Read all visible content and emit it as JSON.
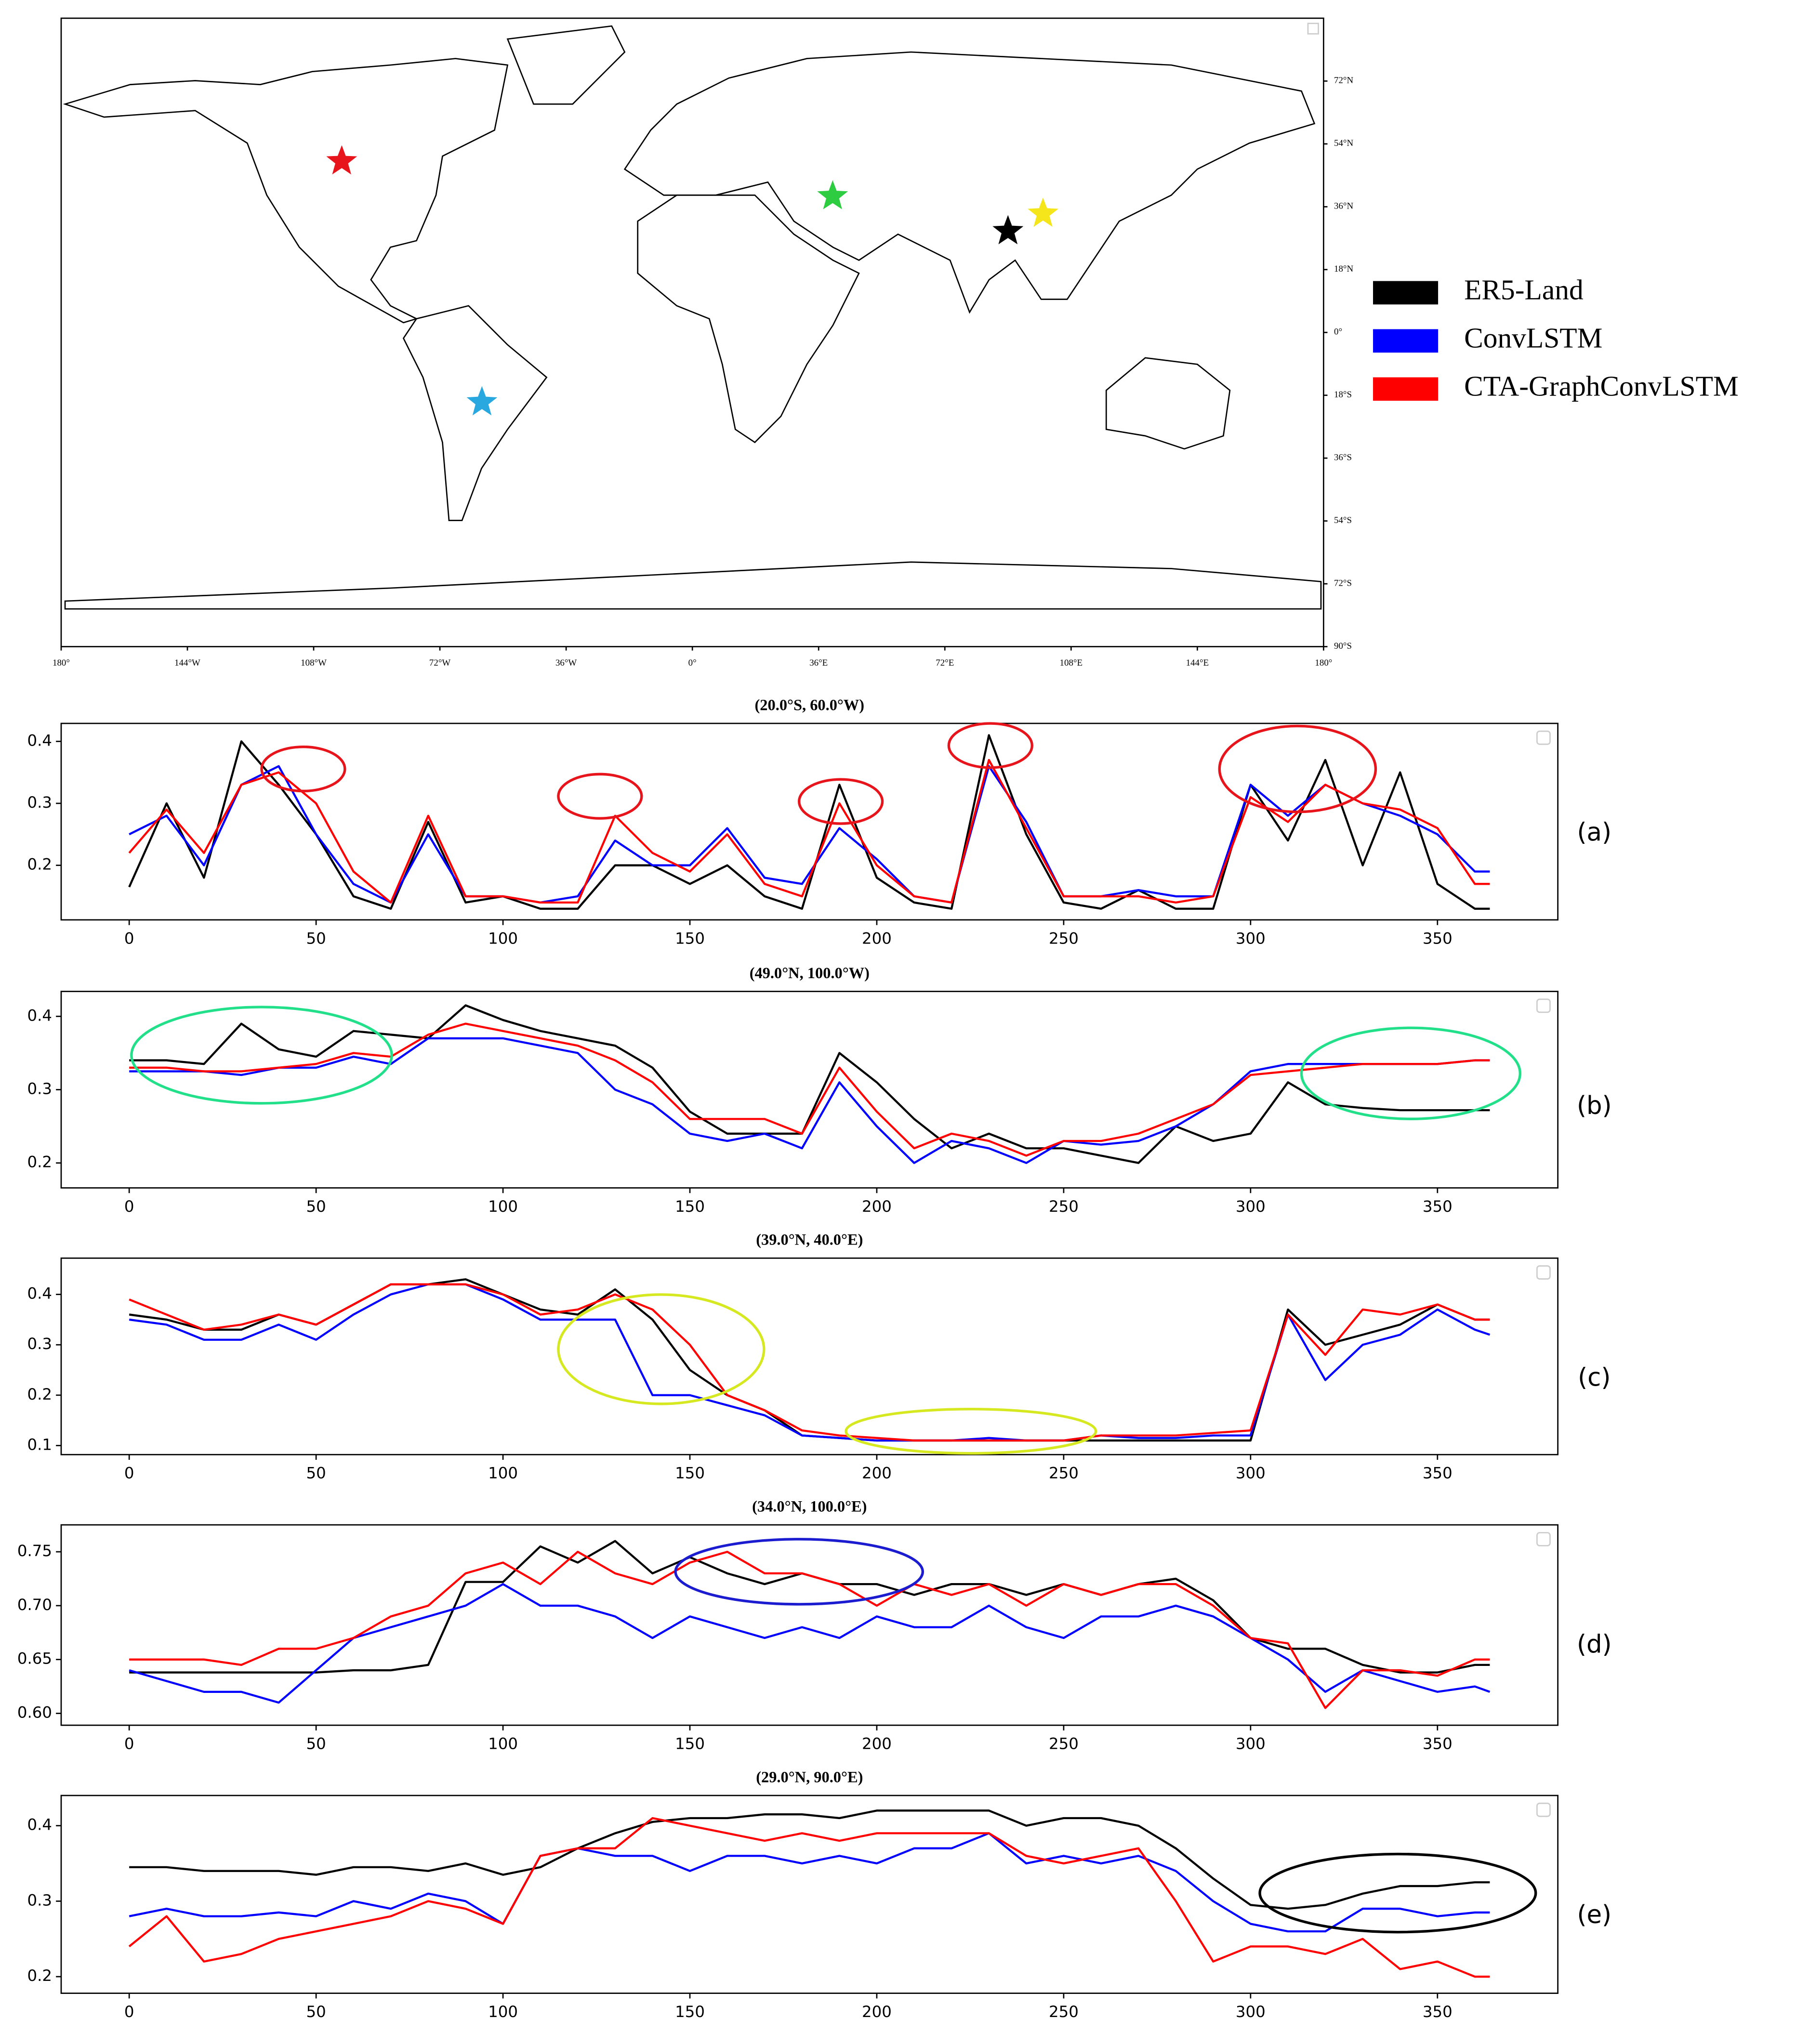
{
  "chart_data": [
    {
      "type": "map",
      "xlim": [
        -180,
        180
      ],
      "ylim": [
        -90,
        90
      ],
      "xticks": [
        {
          "value": -180,
          "label": "180°"
        },
        {
          "value": -144,
          "label": "144°W"
        },
        {
          "value": -108,
          "label": "108°W"
        },
        {
          "value": -72,
          "label": "72°W"
        },
        {
          "value": -36,
          "label": "36°W"
        },
        {
          "value": 0,
          "label": "0°"
        },
        {
          "value": 36,
          "label": "36°E"
        },
        {
          "value": 72,
          "label": "72°E"
        },
        {
          "value": 108,
          "label": "108°E"
        },
        {
          "value": 144,
          "label": "144°E"
        },
        {
          "value": 180,
          "label": "180°"
        }
      ],
      "yticks": [
        {
          "value": 72,
          "label": "72°N"
        },
        {
          "value": 54,
          "label": "54°N"
        },
        {
          "value": 36,
          "label": "36°N"
        },
        {
          "value": 18,
          "label": "18°N"
        },
        {
          "value": 0,
          "label": "0°"
        },
        {
          "value": -18,
          "label": "18°S"
        },
        {
          "value": -36,
          "label": "36°S"
        },
        {
          "value": -54,
          "label": "54°S"
        },
        {
          "value": -72,
          "label": "72°S"
        },
        {
          "value": -90,
          "label": "90°S"
        }
      ],
      "points": [
        {
          "lon": -100,
          "lat": 49,
          "color": "#e8141b"
        },
        {
          "lon": -60,
          "lat": -20,
          "color": "#29a8e0"
        },
        {
          "lon": 40,
          "lat": 39,
          "color": "#2ecc40"
        },
        {
          "lon": 100,
          "lat": 34,
          "color": "#f5e61b"
        },
        {
          "lon": 90,
          "lat": 29,
          "color": "#000000"
        }
      ]
    },
    {
      "type": "line",
      "title": "(20.0°S, 60.0°W)",
      "panel_label": "(a)",
      "xlim": [
        -18.2,
        382.2
      ],
      "ylim": [
        0.112,
        0.429
      ],
      "xticks": [
        0,
        50,
        100,
        150,
        200,
        250,
        300,
        350
      ],
      "yticks": [
        0.2,
        0.3,
        0.4
      ],
      "x": [
        0,
        10,
        20,
        30,
        40,
        50,
        60,
        70,
        80,
        90,
        100,
        110,
        120,
        130,
        140,
        150,
        160,
        170,
        180,
        190,
        200,
        210,
        220,
        230,
        240,
        250,
        260,
        270,
        280,
        290,
        300,
        310,
        320,
        330,
        340,
        350,
        360,
        364
      ],
      "series": [
        {
          "name": "ER5-Land",
          "color": "#000000",
          "values": [
            0.165,
            0.3,
            0.18,
            0.4,
            0.33,
            0.25,
            0.15,
            0.13,
            0.27,
            0.14,
            0.15,
            0.13,
            0.13,
            0.2,
            0.2,
            0.17,
            0.2,
            0.15,
            0.13,
            0.33,
            0.18,
            0.14,
            0.13,
            0.41,
            0.25,
            0.14,
            0.13,
            0.16,
            0.13,
            0.13,
            0.33,
            0.24,
            0.37,
            0.2,
            0.35,
            0.17,
            0.13,
            0.13
          ]
        },
        {
          "name": "ConvLSTM",
          "color": "#0000ff",
          "values": [
            0.25,
            0.28,
            0.2,
            0.33,
            0.36,
            0.25,
            0.17,
            0.14,
            0.25,
            0.15,
            0.15,
            0.14,
            0.15,
            0.24,
            0.2,
            0.2,
            0.26,
            0.18,
            0.17,
            0.26,
            0.21,
            0.15,
            0.14,
            0.36,
            0.27,
            0.15,
            0.15,
            0.16,
            0.15,
            0.15,
            0.33,
            0.28,
            0.33,
            0.3,
            0.28,
            0.25,
            0.19,
            0.19
          ]
        },
        {
          "name": "CTA-GraphConvLSTM",
          "color": "#ff0000",
          "values": [
            0.22,
            0.29,
            0.22,
            0.33,
            0.35,
            0.3,
            0.19,
            0.14,
            0.28,
            0.15,
            0.15,
            0.14,
            0.14,
            0.28,
            0.22,
            0.19,
            0.25,
            0.17,
            0.15,
            0.3,
            0.2,
            0.15,
            0.14,
            0.37,
            0.26,
            0.15,
            0.15,
            0.15,
            0.14,
            0.15,
            0.31,
            0.27,
            0.33,
            0.3,
            0.29,
            0.26,
            0.17,
            0.17
          ]
        }
      ]
    },
    {
      "type": "line",
      "title": "(49.0°N, 100.0°W)",
      "panel_label": "(b)",
      "xlim": [
        -18.2,
        382.2
      ],
      "ylim": [
        0.166,
        0.434
      ],
      "xticks": [
        0,
        50,
        100,
        150,
        200,
        250,
        300,
        350
      ],
      "yticks": [
        0.2,
        0.3,
        0.4
      ],
      "x": [
        0,
        10,
        20,
        30,
        40,
        50,
        60,
        70,
        80,
        90,
        100,
        110,
        120,
        130,
        140,
        150,
        160,
        170,
        180,
        190,
        200,
        210,
        220,
        230,
        240,
        250,
        260,
        270,
        280,
        290,
        300,
        310,
        320,
        330,
        340,
        350,
        360,
        364
      ],
      "series": [
        {
          "name": "ER5-Land",
          "color": "#000000",
          "values": [
            0.34,
            0.34,
            0.335,
            0.39,
            0.355,
            0.345,
            0.38,
            0.375,
            0.37,
            0.415,
            0.395,
            0.38,
            0.37,
            0.36,
            0.33,
            0.27,
            0.24,
            0.24,
            0.24,
            0.35,
            0.31,
            0.26,
            0.22,
            0.24,
            0.22,
            0.22,
            0.21,
            0.2,
            0.25,
            0.23,
            0.24,
            0.31,
            0.28,
            0.275,
            0.272,
            0.272,
            0.272,
            0.272
          ]
        },
        {
          "name": "ConvLSTM",
          "color": "#0000ff",
          "values": [
            0.325,
            0.325,
            0.325,
            0.32,
            0.33,
            0.33,
            0.345,
            0.335,
            0.37,
            0.37,
            0.37,
            0.36,
            0.35,
            0.3,
            0.28,
            0.24,
            0.23,
            0.24,
            0.22,
            0.31,
            0.25,
            0.2,
            0.23,
            0.22,
            0.2,
            0.23,
            0.225,
            0.23,
            0.25,
            0.28,
            0.325,
            0.335,
            0.335,
            0.335,
            0.335,
            0.335,
            0.34,
            0.34
          ]
        },
        {
          "name": "CTA-GraphConvLSTM",
          "color": "#ff0000",
          "values": [
            0.33,
            0.33,
            0.325,
            0.325,
            0.33,
            0.335,
            0.35,
            0.345,
            0.375,
            0.39,
            0.38,
            0.37,
            0.36,
            0.34,
            0.31,
            0.26,
            0.26,
            0.26,
            0.24,
            0.33,
            0.27,
            0.22,
            0.24,
            0.23,
            0.21,
            0.23,
            0.23,
            0.24,
            0.26,
            0.28,
            0.32,
            0.325,
            0.33,
            0.335,
            0.335,
            0.335,
            0.34,
            0.34
          ]
        }
      ]
    },
    {
      "type": "line",
      "title": "(39.0°N, 40.0°E)",
      "panel_label": "(c)",
      "xlim": [
        -18.2,
        382.2
      ],
      "ylim": [
        0.082,
        0.472
      ],
      "xticks": [
        0,
        50,
        100,
        150,
        200,
        250,
        300,
        350
      ],
      "yticks": [
        0.1,
        0.2,
        0.3,
        0.4
      ],
      "x": [
        0,
        10,
        20,
        30,
        40,
        50,
        60,
        70,
        80,
        90,
        100,
        110,
        120,
        130,
        140,
        150,
        160,
        170,
        180,
        190,
        200,
        210,
        220,
        230,
        240,
        250,
        260,
        270,
        280,
        290,
        300,
        310,
        320,
        330,
        340,
        350,
        360,
        364
      ],
      "series": [
        {
          "name": "ER5-Land",
          "color": "#000000",
          "values": [
            0.36,
            0.35,
            0.33,
            0.33,
            0.36,
            0.34,
            0.38,
            0.42,
            0.42,
            0.43,
            0.4,
            0.37,
            0.36,
            0.41,
            0.35,
            0.25,
            0.2,
            0.17,
            0.12,
            0.115,
            0.11,
            0.11,
            0.11,
            0.11,
            0.11,
            0.11,
            0.11,
            0.11,
            0.11,
            0.11,
            0.11,
            0.37,
            0.3,
            0.32,
            0.34,
            0.38,
            0.35,
            0.35
          ]
        },
        {
          "name": "ConvLSTM",
          "color": "#0000ff",
          "values": [
            0.35,
            0.34,
            0.31,
            0.31,
            0.34,
            0.31,
            0.36,
            0.4,
            0.42,
            0.42,
            0.39,
            0.35,
            0.35,
            0.35,
            0.2,
            0.2,
            0.18,
            0.16,
            0.12,
            0.115,
            0.11,
            0.11,
            0.11,
            0.115,
            0.11,
            0.11,
            0.12,
            0.115,
            0.115,
            0.12,
            0.12,
            0.36,
            0.23,
            0.3,
            0.32,
            0.37,
            0.33,
            0.32
          ]
        },
        {
          "name": "CTA-GraphConvLSTM",
          "color": "#ff0000",
          "values": [
            0.39,
            0.36,
            0.33,
            0.34,
            0.36,
            0.34,
            0.38,
            0.42,
            0.42,
            0.42,
            0.4,
            0.36,
            0.37,
            0.4,
            0.37,
            0.3,
            0.2,
            0.17,
            0.13,
            0.12,
            0.115,
            0.11,
            0.11,
            0.11,
            0.11,
            0.11,
            0.12,
            0.12,
            0.12,
            0.125,
            0.13,
            0.36,
            0.28,
            0.37,
            0.36,
            0.38,
            0.35,
            0.35
          ]
        }
      ]
    },
    {
      "type": "line",
      "title": "(34.0°N, 100.0°E)",
      "panel_label": "(d)",
      "xlim": [
        -18.2,
        382.2
      ],
      "ylim": [
        0.589,
        0.775
      ],
      "xticks": [
        0,
        50,
        100,
        150,
        200,
        250,
        300,
        350
      ],
      "yticks": [
        0.75,
        {
          "value": 0.7,
          "label": "0.70"
        },
        0.65,
        {
          "value": 0.6,
          "label": "0.60"
        }
      ],
      "x": [
        0,
        10,
        20,
        30,
        40,
        50,
        60,
        70,
        80,
        90,
        100,
        110,
        120,
        130,
        140,
        150,
        160,
        170,
        180,
        190,
        200,
        210,
        220,
        230,
        240,
        250,
        260,
        270,
        280,
        290,
        300,
        310,
        320,
        330,
        340,
        350,
        360,
        364
      ],
      "series": [
        {
          "name": "ER5-Land",
          "color": "#000000",
          "values": [
            0.638,
            0.638,
            0.638,
            0.638,
            0.638,
            0.638,
            0.64,
            0.64,
            0.645,
            0.722,
            0.722,
            0.755,
            0.74,
            0.76,
            0.73,
            0.745,
            0.73,
            0.72,
            0.73,
            0.72,
            0.72,
            0.71,
            0.72,
            0.72,
            0.71,
            0.72,
            0.71,
            0.72,
            0.725,
            0.705,
            0.67,
            0.66,
            0.66,
            0.645,
            0.638,
            0.638,
            0.645,
            0.645
          ]
        },
        {
          "name": "ConvLSTM",
          "color": "#0000ff",
          "values": [
            0.64,
            0.63,
            0.62,
            0.62,
            0.61,
            0.64,
            0.67,
            0.68,
            0.69,
            0.7,
            0.72,
            0.7,
            0.7,
            0.69,
            0.67,
            0.69,
            0.68,
            0.67,
            0.68,
            0.67,
            0.69,
            0.68,
            0.68,
            0.7,
            0.68,
            0.67,
            0.69,
            0.69,
            0.7,
            0.69,
            0.67,
            0.65,
            0.62,
            0.64,
            0.63,
            0.62,
            0.625,
            0.62
          ]
        },
        {
          "name": "CTA-GraphConvLSTM",
          "color": "#ff0000",
          "values": [
            0.65,
            0.65,
            0.65,
            0.645,
            0.66,
            0.66,
            0.67,
            0.69,
            0.7,
            0.73,
            0.74,
            0.72,
            0.75,
            0.73,
            0.72,
            0.74,
            0.75,
            0.73,
            0.73,
            0.72,
            0.7,
            0.72,
            0.71,
            0.72,
            0.7,
            0.72,
            0.71,
            0.72,
            0.72,
            0.7,
            0.67,
            0.665,
            0.605,
            0.64,
            0.64,
            0.635,
            0.65,
            0.65
          ]
        }
      ]
    },
    {
      "type": "line",
      "title": "(29.0°N, 90.0°E)",
      "panel_label": "(e)",
      "xlim": [
        -18.2,
        382.2
      ],
      "ylim": [
        0.178,
        0.44
      ],
      "xticks": [
        0,
        50,
        100,
        150,
        200,
        250,
        300,
        350
      ],
      "yticks": [
        0.2,
        0.3,
        0.4
      ],
      "x": [
        0,
        10,
        20,
        30,
        40,
        50,
        60,
        70,
        80,
        90,
        100,
        110,
        120,
        130,
        140,
        150,
        160,
        170,
        180,
        190,
        200,
        210,
        220,
        230,
        240,
        250,
        260,
        270,
        280,
        290,
        300,
        310,
        320,
        330,
        340,
        350,
        360,
        364
      ],
      "series": [
        {
          "name": "ER5-Land",
          "color": "#000000",
          "values": [
            0.345,
            0.345,
            0.34,
            0.34,
            0.34,
            0.335,
            0.345,
            0.345,
            0.34,
            0.35,
            0.335,
            0.345,
            0.37,
            0.39,
            0.405,
            0.41,
            0.41,
            0.415,
            0.415,
            0.41,
            0.42,
            0.42,
            0.42,
            0.42,
            0.4,
            0.41,
            0.41,
            0.4,
            0.37,
            0.33,
            0.295,
            0.29,
            0.295,
            0.31,
            0.32,
            0.32,
            0.325,
            0.325
          ]
        },
        {
          "name": "ConvLSTM",
          "color": "#0000ff",
          "values": [
            0.28,
            0.29,
            0.28,
            0.28,
            0.285,
            0.28,
            0.3,
            0.29,
            0.31,
            0.3,
            0.27,
            0.36,
            0.37,
            0.36,
            0.36,
            0.34,
            0.36,
            0.36,
            0.35,
            0.36,
            0.35,
            0.37,
            0.37,
            0.39,
            0.35,
            0.36,
            0.35,
            0.36,
            0.34,
            0.3,
            0.27,
            0.26,
            0.26,
            0.29,
            0.29,
            0.28,
            0.285,
            0.285
          ]
        },
        {
          "name": "CTA-GraphConvLSTM",
          "color": "#ff0000",
          "values": [
            0.24,
            0.28,
            0.22,
            0.23,
            0.25,
            0.26,
            0.27,
            0.28,
            0.3,
            0.29,
            0.27,
            0.36,
            0.37,
            0.37,
            0.41,
            0.4,
            0.39,
            0.38,
            0.39,
            0.38,
            0.39,
            0.39,
            0.39,
            0.39,
            0.36,
            0.35,
            0.36,
            0.37,
            0.3,
            0.22,
            0.24,
            0.24,
            0.23,
            0.25,
            0.21,
            0.22,
            0.2,
            0.2
          ]
        }
      ]
    }
  ]
}
